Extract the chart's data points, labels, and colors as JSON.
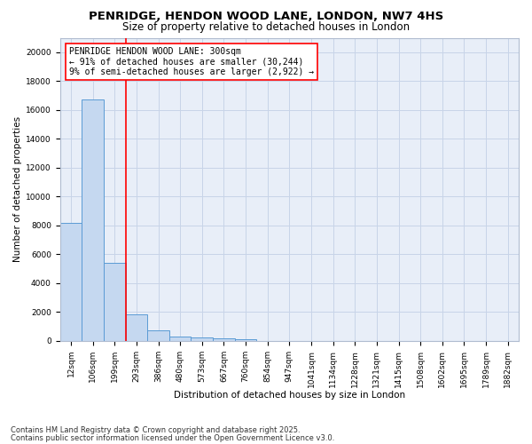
{
  "title1": "PENRIDGE, HENDON WOOD LANE, LONDON, NW7 4HS",
  "title2": "Size of property relative to detached houses in London",
  "xlabel": "Distribution of detached houses by size in London",
  "ylabel": "Number of detached properties",
  "bins": [
    "12sqm",
    "106sqm",
    "199sqm",
    "293sqm",
    "386sqm",
    "480sqm",
    "573sqm",
    "667sqm",
    "760sqm",
    "854sqm",
    "947sqm",
    "1041sqm",
    "1134sqm",
    "1228sqm",
    "1321sqm",
    "1415sqm",
    "1508sqm",
    "1602sqm",
    "1695sqm",
    "1789sqm",
    "1882sqm"
  ],
  "bar_heights": [
    8200,
    16700,
    5400,
    1850,
    750,
    330,
    230,
    155,
    125,
    0,
    0,
    0,
    0,
    0,
    0,
    0,
    0,
    0,
    0,
    0,
    0
  ],
  "bar_color": "#c5d8f0",
  "bar_edge_color": "#5b9bd5",
  "annotation_text": "PENRIDGE HENDON WOOD LANE: 300sqm\n← 91% of detached houses are smaller (30,244)\n9% of semi-detached houses are larger (2,922) →",
  "ylim": [
    0,
    21000
  ],
  "yticks": [
    0,
    2000,
    4000,
    6000,
    8000,
    10000,
    12000,
    14000,
    16000,
    18000,
    20000
  ],
  "footer1": "Contains HM Land Registry data © Crown copyright and database right 2025.",
  "footer2": "Contains public sector information licensed under the Open Government Licence v3.0.",
  "background_color": "#ffffff",
  "plot_bg_color": "#e8eef8",
  "grid_color": "#c8d4e8",
  "title1_fontsize": 9.5,
  "title2_fontsize": 8.5,
  "ylabel_fontsize": 7.5,
  "xlabel_fontsize": 7.5,
  "tick_fontsize": 6.5,
  "annot_fontsize": 7.0,
  "footer_fontsize": 6.0,
  "red_line_x": 2.5
}
